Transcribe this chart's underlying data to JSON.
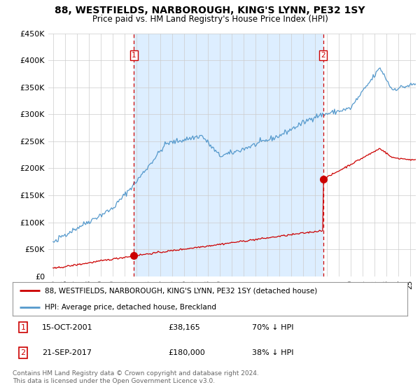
{
  "title": "88, WESTFIELDS, NARBOROUGH, KING'S LYNN, PE32 1SY",
  "subtitle": "Price paid vs. HM Land Registry's House Price Index (HPI)",
  "ylabel_ticks": [
    "£0",
    "£50K",
    "£100K",
    "£150K",
    "£200K",
    "£250K",
    "£300K",
    "£350K",
    "£400K",
    "£450K"
  ],
  "ylim": [
    0,
    450000
  ],
  "xlim_start": 1994.6,
  "xlim_end": 2025.5,
  "hpi_color": "#5599cc",
  "property_color": "#cc0000",
  "vline_color": "#cc0000",
  "shade_color": "#ddeeff",
  "transaction1_x": 2001.79,
  "transaction1_price": 38165,
  "transaction2_x": 2017.72,
  "transaction2_price": 180000,
  "legend_line1": "88, WESTFIELDS, NARBOROUGH, KING'S LYNN, PE32 1SY (detached house)",
  "legend_line2": "HPI: Average price, detached house, Breckland",
  "table_row1": [
    "1",
    "15-OCT-2001",
    "£38,165",
    "70% ↓ HPI"
  ],
  "table_row2": [
    "2",
    "21-SEP-2017",
    "£180,000",
    "38% ↓ HPI"
  ],
  "footer": "Contains HM Land Registry data © Crown copyright and database right 2024.\nThis data is licensed under the Open Government Licence v3.0.",
  "background_color": "#ffffff",
  "grid_color": "#cccccc"
}
